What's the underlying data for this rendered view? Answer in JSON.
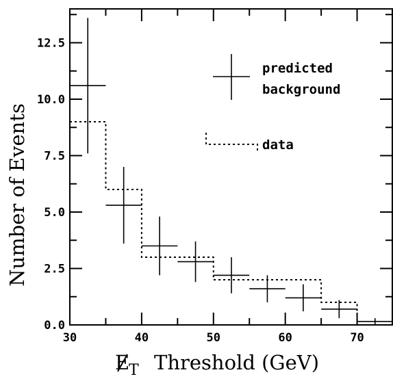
{
  "chart_data": {
    "type": "line",
    "title": "",
    "xlabel": "E_T Threshold (GeV)",
    "xlabel_main": "T",
    "xlabel_rest": "Threshold (GeV)",
    "xlabel_sub": "T",
    "ylabel": "Number of Events",
    "xlim": [
      30,
      75
    ],
    "ylim": [
      0,
      14
    ],
    "x_ticks": [
      30,
      40,
      50,
      60,
      70
    ],
    "y_ticks": [
      0.0,
      2.5,
      5.0,
      7.5,
      10.0,
      12.5
    ],
    "x_tick_labels": [
      "30",
      "40",
      "50",
      "60",
      "70"
    ],
    "y_tick_labels": [
      "0.0",
      "2.5",
      "5.0",
      "7.5",
      "10.0",
      "12.5"
    ],
    "grid": false,
    "legend_position": "top-right",
    "legend": {
      "predicted_line1": "predicted",
      "predicted_line2": "background",
      "data_label": "data"
    },
    "series": [
      {
        "name": "predicted background",
        "style": "crosses",
        "points": [
          {
            "x": 32.5,
            "xerr": 2.5,
            "y": 10.6,
            "ylo": 7.6,
            "yhi": 13.6
          },
          {
            "x": 37.5,
            "xerr": 2.5,
            "y": 5.3,
            "ylo": 3.6,
            "yhi": 7.0
          },
          {
            "x": 42.5,
            "xerr": 2.5,
            "y": 3.5,
            "ylo": 2.2,
            "yhi": 4.8
          },
          {
            "x": 47.5,
            "xerr": 2.5,
            "y": 2.8,
            "ylo": 1.9,
            "yhi": 3.7
          },
          {
            "x": 52.5,
            "xerr": 2.5,
            "y": 2.2,
            "ylo": 1.4,
            "yhi": 3.0
          },
          {
            "x": 57.5,
            "xerr": 2.5,
            "y": 1.6,
            "ylo": 1.0,
            "yhi": 2.2
          },
          {
            "x": 62.5,
            "xerr": 2.5,
            "y": 1.2,
            "ylo": 0.6,
            "yhi": 1.8
          },
          {
            "x": 67.5,
            "xerr": 2.5,
            "y": 0.7,
            "ylo": 0.3,
            "yhi": 1.1
          },
          {
            "x": 72.5,
            "xerr": 2.5,
            "y": 0.15,
            "ylo": 0.0,
            "yhi": 0.3
          }
        ]
      },
      {
        "name": "data",
        "style": "dotted-step",
        "bin_edges": [
          30,
          35,
          40,
          50,
          55,
          65,
          70,
          75
        ],
        "values": [
          9,
          6,
          3,
          2,
          2,
          1,
          0
        ]
      }
    ]
  },
  "colors": {
    "axis": "#000000",
    "background": "#ffffff"
  }
}
